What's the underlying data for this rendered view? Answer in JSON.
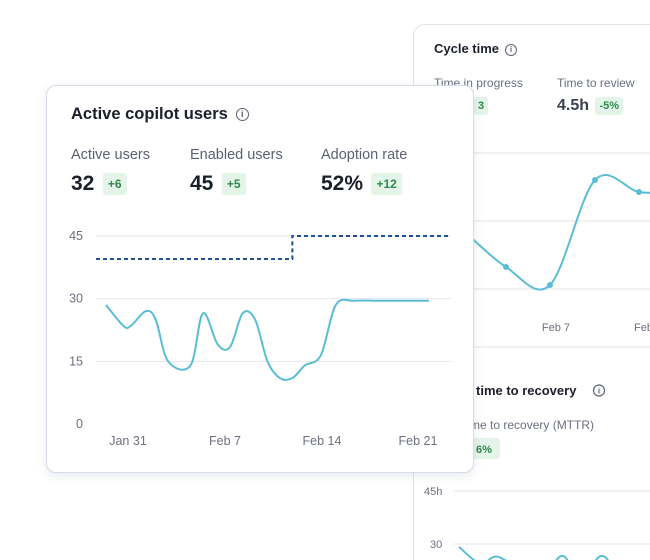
{
  "cycle_time_card": {
    "title": "Cycle time",
    "metrics": [
      {
        "label": "Time in progress",
        "value": "",
        "change": "3"
      },
      {
        "label": "Time to review",
        "value": "4.5h",
        "change": "-5%"
      }
    ],
    "x_ticks": [
      "Feb 7",
      "Feb"
    ]
  },
  "recovery_card": {
    "title": "time  to recovery",
    "metric_label": "me to recovery (MTTR)",
    "change": "6%",
    "y_ticks": [
      "45h",
      "30"
    ]
  },
  "active_users_card": {
    "title": "Active copilot users",
    "stats": [
      {
        "label": "Active users",
        "value": "32",
        "change": "+6"
      },
      {
        "label": "Enabled users",
        "value": "45",
        "change": "+5"
      },
      {
        "label": "Adoption rate",
        "value": "52%",
        "change": "+12"
      }
    ]
  },
  "chart_data": [
    {
      "type": "line",
      "title": "Active copilot users",
      "x_tick_labels": [
        "Jan 31",
        "Feb 7",
        "Feb 14",
        "Feb 21"
      ],
      "y_tick_labels": [
        "0",
        "15",
        "30",
        "45"
      ],
      "ylim": [
        0,
        45
      ],
      "x_range": [
        0,
        26
      ],
      "grid": true,
      "colors": {
        "active": "#5bbdd4",
        "enabled": "#1f4f99",
        "grid": "#e3e6ee"
      },
      "series": [
        {
          "style": "solid",
          "x": [
            0,
            1.4,
            2,
            3.2,
            4,
            5,
            6.8,
            7.8,
            9,
            10,
            11,
            12,
            13,
            14,
            15,
            16,
            17.3,
            18.5,
            20,
            22,
            24,
            26
          ],
          "values": [
            28.5,
            23.5,
            23.5,
            27,
            25,
            15,
            14,
            26.5,
            19,
            18.5,
            26.5,
            25,
            15,
            11,
            11,
            14,
            16.5,
            28.5,
            29.5,
            29.5,
            29.5,
            29.5
          ]
        },
        {
          "style": "dashed",
          "x": [
            -1,
            15,
            15,
            28
          ],
          "values": [
            39.5,
            39.5,
            45,
            45
          ]
        }
      ]
    },
    {
      "type": "line",
      "title": "Cycle time",
      "x_tick_labels": [
        "Feb 7",
        "Feb"
      ],
      "series": [
        {
          "x": [
            0,
            1,
            2,
            3,
            4,
            5
          ],
          "values": [
            2.8,
            1.6,
            1.0,
            4.5,
            4.1,
            4.1
          ]
        }
      ]
    }
  ]
}
